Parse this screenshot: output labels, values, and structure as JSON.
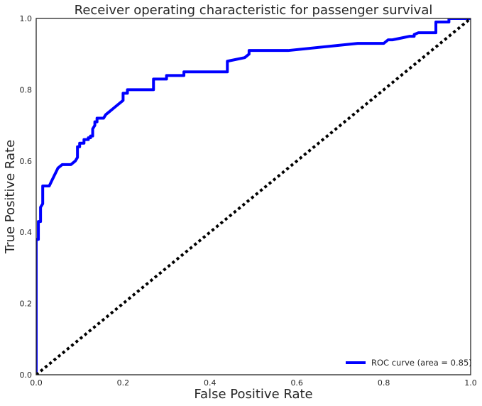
{
  "chart_data": {
    "type": "line",
    "title": "Receiver operating characteristic for passenger survival",
    "xlabel": "False Positive Rate",
    "ylabel": "True Positive Rate",
    "xlim": [
      0.0,
      1.0
    ],
    "ylim": [
      0.0,
      1.0
    ],
    "x_ticks": [
      "0.0",
      "0.2",
      "0.4",
      "0.6",
      "0.8",
      "1.0"
    ],
    "y_ticks": [
      "0.0",
      "0.2",
      "0.4",
      "0.6",
      "0.8",
      "1.0"
    ],
    "grid": false,
    "legend_position": "bottom-right",
    "series": [
      {
        "name": "ROC curve (area = 0.85)",
        "color": "#0000ff",
        "style": "solid",
        "x": [
          0.0,
          0.0,
          0.005,
          0.005,
          0.01,
          0.01,
          0.015,
          0.015,
          0.03,
          0.05,
          0.06,
          0.07,
          0.08,
          0.09,
          0.09,
          0.095,
          0.095,
          0.1,
          0.1,
          0.11,
          0.11,
          0.12,
          0.12,
          0.125,
          0.125,
          0.13,
          0.13,
          0.135,
          0.135,
          0.14,
          0.14,
          0.155,
          0.16,
          0.17,
          0.18,
          0.2,
          0.2,
          0.21,
          0.21,
          0.27,
          0.27,
          0.3,
          0.3,
          0.34,
          0.34,
          0.44,
          0.44,
          0.48,
          0.49,
          0.49,
          0.58,
          0.74,
          0.8,
          0.81,
          0.82,
          0.84,
          0.86,
          0.87,
          0.87,
          0.88,
          0.92,
          0.92,
          0.95,
          0.95,
          1.0
        ],
        "y": [
          0.0,
          0.38,
          0.38,
          0.43,
          0.43,
          0.47,
          0.48,
          0.53,
          0.53,
          0.58,
          0.59,
          0.59,
          0.59,
          0.6,
          0.6,
          0.61,
          0.64,
          0.64,
          0.65,
          0.65,
          0.66,
          0.66,
          0.665,
          0.665,
          0.67,
          0.67,
          0.69,
          0.7,
          0.71,
          0.71,
          0.72,
          0.72,
          0.73,
          0.74,
          0.75,
          0.77,
          0.79,
          0.79,
          0.8,
          0.8,
          0.83,
          0.83,
          0.84,
          0.84,
          0.85,
          0.85,
          0.88,
          0.89,
          0.9,
          0.91,
          0.91,
          0.93,
          0.93,
          0.94,
          0.94,
          0.945,
          0.95,
          0.95,
          0.955,
          0.96,
          0.96,
          0.99,
          0.99,
          1.0,
          1.0
        ]
      },
      {
        "name": "",
        "color": "#000000",
        "style": "dotted",
        "x": [
          0.0,
          1.0
        ],
        "y": [
          0.0,
          1.0
        ]
      }
    ]
  }
}
